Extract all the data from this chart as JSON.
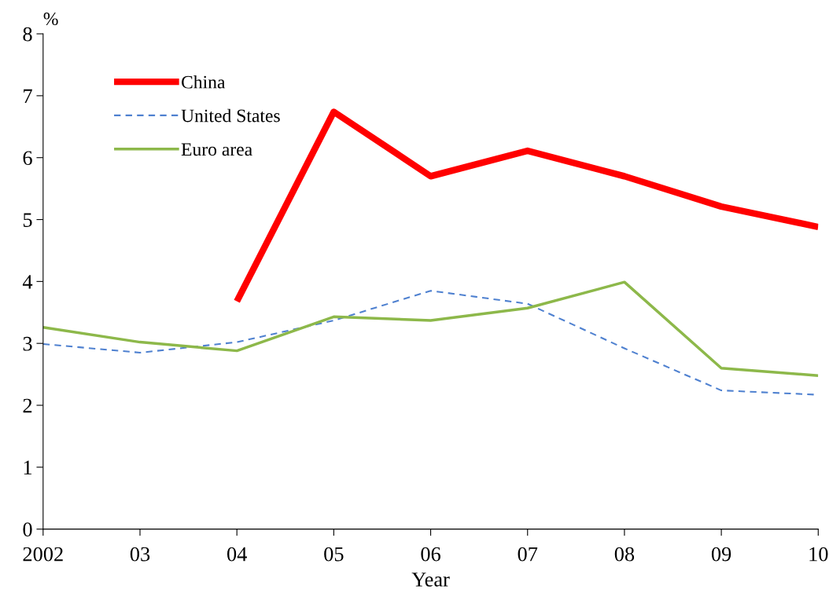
{
  "chart_data": {
    "type": "line",
    "xlabel": "Year",
    "ylabel": "%",
    "categories": [
      "2002",
      "03",
      "04",
      "05",
      "06",
      "07",
      "08",
      "09",
      "10"
    ],
    "series": [
      {
        "name": "China",
        "color": "#ff0000",
        "line_style": "solid",
        "values": [
          null,
          null,
          3.68,
          6.74,
          5.7,
          6.11,
          5.7,
          5.21,
          4.88
        ]
      },
      {
        "name": "United States",
        "color": "#4f81d0",
        "line_style": "dashed",
        "values": [
          2.99,
          2.85,
          3.02,
          3.37,
          3.85,
          3.64,
          2.92,
          2.24,
          2.17
        ]
      },
      {
        "name": "Euro area",
        "color": "#8db84a",
        "line_style": "solid",
        "values": [
          3.26,
          3.02,
          2.88,
          3.43,
          3.37,
          3.57,
          3.99,
          2.6,
          2.48
        ]
      }
    ],
    "ylim": [
      0,
      8
    ],
    "yticks": [
      0,
      1,
      2,
      3,
      4,
      5,
      6,
      7,
      8
    ],
    "grid": false,
    "legend": "top left",
    "marker": "none"
  }
}
